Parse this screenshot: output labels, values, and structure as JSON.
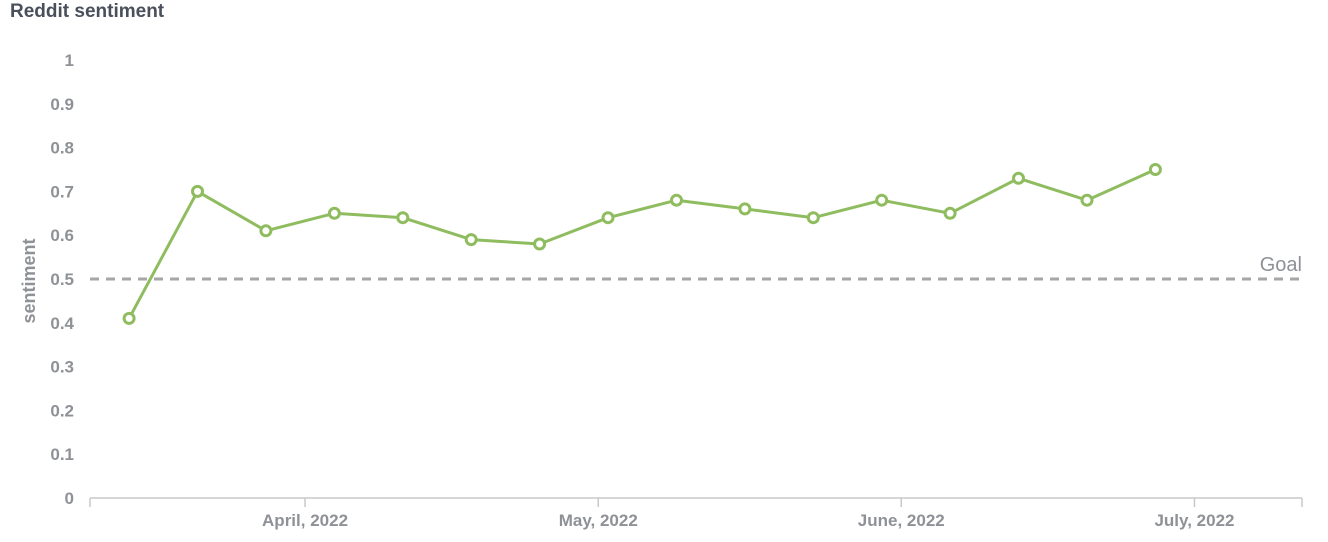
{
  "chart_data": {
    "type": "line",
    "title": "Reddit sentiment",
    "ylabel": "sentiment",
    "xlabel": "",
    "ylim": [
      0,
      1
    ],
    "y_ticks": [
      "0",
      "0.1",
      "0.2",
      "0.3",
      "0.4",
      "0.5",
      "0.6",
      "0.7",
      "0.8",
      "0.9",
      "1"
    ],
    "x_tick_labels": [
      "April, 2022",
      "May, 2022",
      "June, 2022",
      "July, 2022"
    ],
    "x_tick_dates": [
      "2022-04-01",
      "2022-05-01",
      "2022-06-01",
      "2022-07-01"
    ],
    "xlim": [
      "2022-03-10",
      "2022-07-12"
    ],
    "grid": false,
    "series": [
      {
        "color": "#8fbc5f",
        "points": [
          {
            "x": "2022-03-14",
            "y": 0.41
          },
          {
            "x": "2022-03-21",
            "y": 0.7
          },
          {
            "x": "2022-03-28",
            "y": 0.61
          },
          {
            "x": "2022-04-04",
            "y": 0.65
          },
          {
            "x": "2022-04-11",
            "y": 0.64
          },
          {
            "x": "2022-04-18",
            "y": 0.59
          },
          {
            "x": "2022-04-25",
            "y": 0.58
          },
          {
            "x": "2022-05-02",
            "y": 0.64
          },
          {
            "x": "2022-05-09",
            "y": 0.68
          },
          {
            "x": "2022-05-16",
            "y": 0.66
          },
          {
            "x": "2022-05-23",
            "y": 0.64
          },
          {
            "x": "2022-05-30",
            "y": 0.68
          },
          {
            "x": "2022-06-06",
            "y": 0.65
          },
          {
            "x": "2022-06-13",
            "y": 0.73
          },
          {
            "x": "2022-06-20",
            "y": 0.68
          },
          {
            "x": "2022-06-27",
            "y": 0.75
          }
        ]
      }
    ],
    "reference_line": {
      "y": 0.5,
      "label": "Goal",
      "style": "dashed",
      "color": "#a6a6a6"
    }
  }
}
